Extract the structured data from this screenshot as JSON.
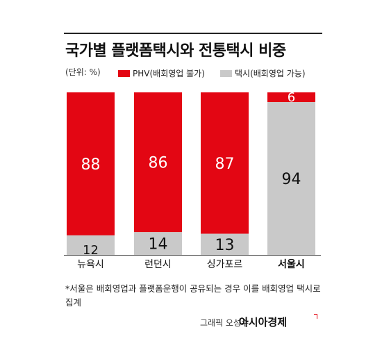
{
  "chart_data": {
    "type": "bar",
    "stacked": true,
    "title": "국가별 플랫폼택시와 전통택시 비중",
    "unit_label": "(단위: %)",
    "categories": [
      "뉴욕시",
      "런던시",
      "싱가포르",
      "서울시"
    ],
    "series": [
      {
        "name": "PHV(배회영업 불가)",
        "color": "#e30613",
        "values": [
          88,
          86,
          87,
          6
        ]
      },
      {
        "name": "택시(배회영업 가능)",
        "color": "#c9c9c9",
        "values": [
          12,
          14,
          13,
          94
        ]
      }
    ],
    "ylim": [
      0,
      100
    ],
    "highlight_category": "서울시",
    "grid": false,
    "legend_position": "top"
  },
  "footnote": "*서울은 배회영업과 플랫폼운행이 공유되는 경우 이를 배회영업 택시로 집계",
  "credit": "그래픽 오성수",
  "brand": "아시아경제"
}
